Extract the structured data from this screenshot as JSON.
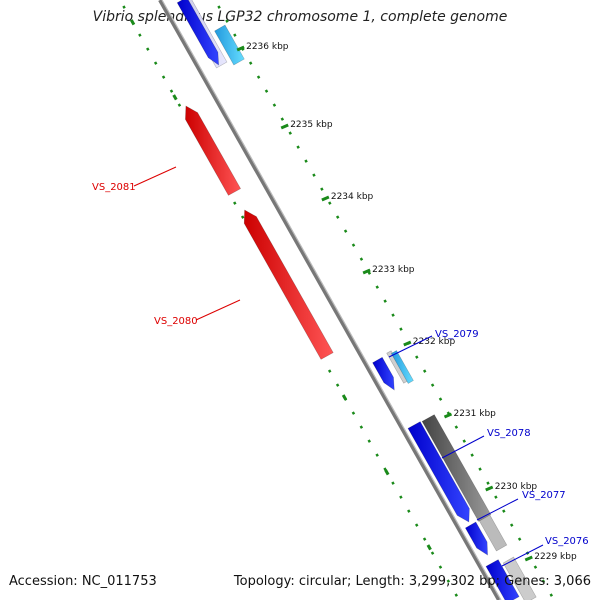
{
  "title": "Vibrio splendidus LGP32 chromosome 1, complete genome",
  "footer": {
    "accession": "Accession: NC_011753",
    "info": "Topology: circular; Length: 3,299,302 bp; Genes: 3,066"
  },
  "colors": {
    "backbone": "#777777",
    "ticks": "#1a8a1a",
    "forward_gene": "#ff0000",
    "reverse_gene": "#0000ee",
    "rna": "#33ccee",
    "pseudo": "#555555",
    "label_red": "#dd0000",
    "label_blue": "#0000cc"
  },
  "scale_marks": [
    {
      "label": "2236 kbp"
    },
    {
      "label": "2235 kbp"
    },
    {
      "label": "2234 kbp"
    },
    {
      "label": "2233 kbp"
    },
    {
      "label": "2232 kbp"
    },
    {
      "label": "2231 kbp"
    },
    {
      "label": "2230 kbp"
    },
    {
      "label": "2229 kbp"
    }
  ],
  "gene_labels": [
    {
      "text": "VS_2081",
      "strand": "forward"
    },
    {
      "text": "VS_2080",
      "strand": "forward"
    },
    {
      "text": "VS_2079",
      "strand": "reverse"
    },
    {
      "text": "VS_2078",
      "strand": "reverse"
    },
    {
      "text": "VS_2077",
      "strand": "reverse"
    },
    {
      "text": "VS_2076",
      "strand": "reverse"
    }
  ]
}
